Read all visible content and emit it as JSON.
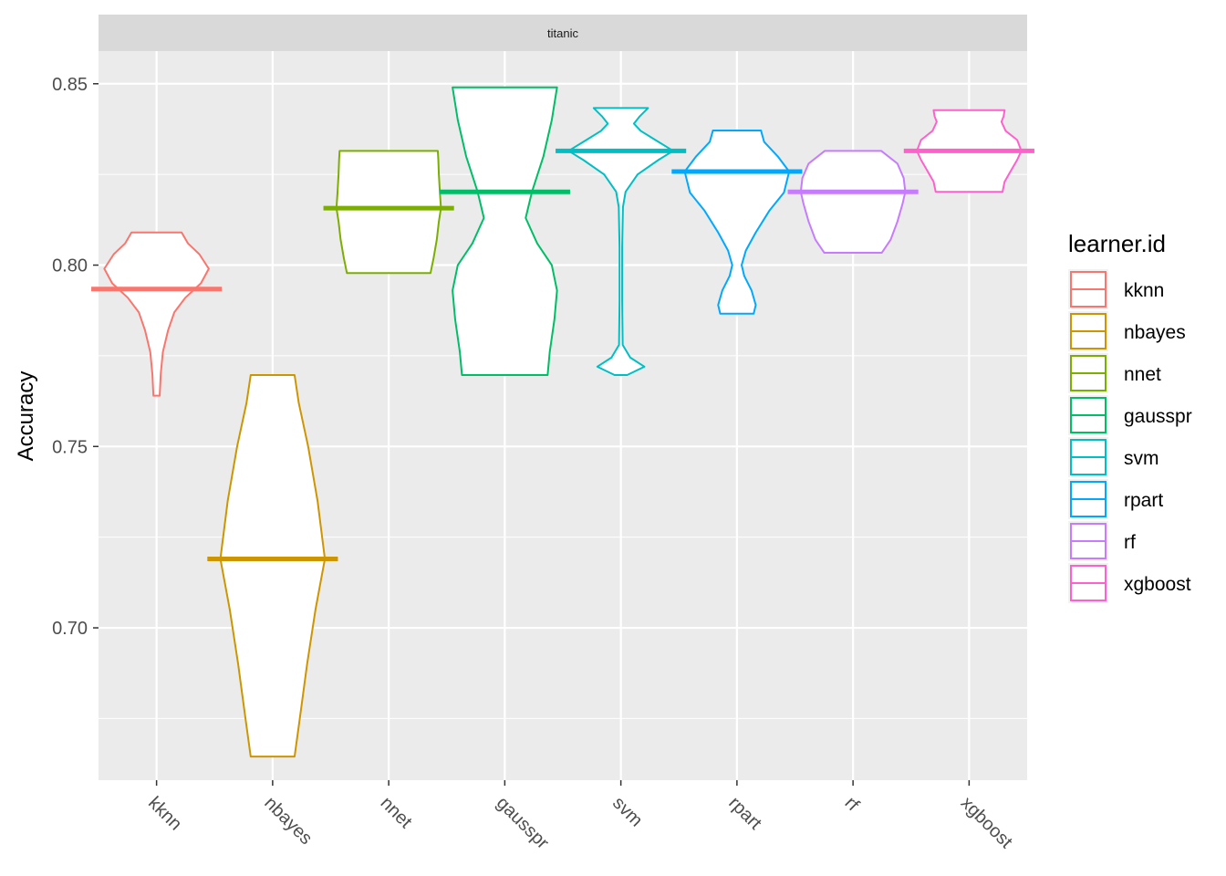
{
  "chart_data": {
    "type": "violin",
    "facet": "titanic",
    "ylabel": "Accuracy",
    "xlabel": "",
    "ylim": [
      0.658,
      0.859
    ],
    "y_ticks": [
      0.7,
      0.75,
      0.8,
      0.85
    ],
    "y_tick_labels": [
      "0.70",
      "0.75",
      "0.80",
      "0.85"
    ],
    "grid": true,
    "legend": {
      "title": "learner.id",
      "position": "right"
    },
    "categories": [
      "kknn",
      "nbayes",
      "nnet",
      "gausspr",
      "svm",
      "rpart",
      "rf",
      "xgboost"
    ],
    "series": [
      {
        "name": "kknn",
        "color": "#F8766D",
        "median": 0.7934,
        "profile": [
          [
            0.764,
            0.06
          ],
          [
            0.77,
            0.08
          ],
          [
            0.776,
            0.12
          ],
          [
            0.782,
            0.22
          ],
          [
            0.787,
            0.34
          ],
          [
            0.791,
            0.55
          ],
          [
            0.795,
            0.85
          ],
          [
            0.799,
            1.0
          ],
          [
            0.803,
            0.82
          ],
          [
            0.806,
            0.6
          ],
          [
            0.809,
            0.48
          ]
        ]
      },
      {
        "name": "nbayes",
        "color": "#CD9600",
        "median": 0.719,
        "profile": [
          [
            0.6645,
            0.42
          ],
          [
            0.675,
            0.52
          ],
          [
            0.69,
            0.66
          ],
          [
            0.705,
            0.82
          ],
          [
            0.719,
            1.0
          ],
          [
            0.735,
            0.86
          ],
          [
            0.75,
            0.68
          ],
          [
            0.762,
            0.5
          ],
          [
            0.7697,
            0.42
          ]
        ]
      },
      {
        "name": "nnet",
        "color": "#7CAE00",
        "median": 0.8157,
        "profile": [
          [
            0.7978,
            0.8
          ],
          [
            0.802,
            0.86
          ],
          [
            0.807,
            0.92
          ],
          [
            0.812,
            0.96
          ],
          [
            0.8157,
            1.0
          ],
          [
            0.82,
            0.98
          ],
          [
            0.825,
            0.96
          ],
          [
            0.829,
            0.95
          ],
          [
            0.8315,
            0.94
          ]
        ]
      },
      {
        "name": "gausspr",
        "color": "#00BE67",
        "median": 0.8202,
        "profile": [
          [
            0.7697,
            0.82
          ],
          [
            0.776,
            0.86
          ],
          [
            0.785,
            0.95
          ],
          [
            0.793,
            1.0
          ],
          [
            0.8,
            0.9
          ],
          [
            0.806,
            0.62
          ],
          [
            0.813,
            0.4
          ],
          [
            0.8202,
            0.52
          ],
          [
            0.83,
            0.74
          ],
          [
            0.84,
            0.9
          ],
          [
            0.849,
            1.0
          ]
        ]
      },
      {
        "name": "svm",
        "color": "#00BFC4",
        "median": 0.8315,
        "profile": [
          [
            0.7697,
            0.12
          ],
          [
            0.772,
            0.45
          ],
          [
            0.7745,
            0.18
          ],
          [
            0.778,
            0.035
          ],
          [
            0.79,
            0.025
          ],
          [
            0.805,
            0.025
          ],
          [
            0.816,
            0.04
          ],
          [
            0.8202,
            0.09
          ],
          [
            0.825,
            0.32
          ],
          [
            0.829,
            0.72
          ],
          [
            0.8315,
            1.0
          ],
          [
            0.8345,
            0.66
          ],
          [
            0.837,
            0.38
          ],
          [
            0.839,
            0.25
          ],
          [
            0.841,
            0.36
          ],
          [
            0.8433,
            0.52
          ]
        ]
      },
      {
        "name": "rpart",
        "color": "#00A9FF",
        "median": 0.8258,
        "profile": [
          [
            0.7866,
            0.32
          ],
          [
            0.789,
            0.36
          ],
          [
            0.793,
            0.28
          ],
          [
            0.797,
            0.14
          ],
          [
            0.8,
            0.09
          ],
          [
            0.804,
            0.17
          ],
          [
            0.809,
            0.36
          ],
          [
            0.815,
            0.62
          ],
          [
            0.82,
            0.9
          ],
          [
            0.8258,
            1.0
          ],
          [
            0.83,
            0.78
          ],
          [
            0.834,
            0.52
          ],
          [
            0.8371,
            0.46
          ]
        ]
      },
      {
        "name": "rf",
        "color": "#C77CFF",
        "median": 0.8202,
        "profile": [
          [
            0.8034,
            0.55
          ],
          [
            0.807,
            0.72
          ],
          [
            0.812,
            0.85
          ],
          [
            0.817,
            0.95
          ],
          [
            0.8202,
            1.0
          ],
          [
            0.824,
            0.97
          ],
          [
            0.828,
            0.85
          ],
          [
            0.8315,
            0.54
          ]
        ]
      },
      {
        "name": "xgboost",
        "color": "#FF61CC",
        "median": 0.8315,
        "profile": [
          [
            0.8202,
            0.64
          ],
          [
            0.823,
            0.68
          ],
          [
            0.826,
            0.8
          ],
          [
            0.829,
            0.92
          ],
          [
            0.8315,
            1.0
          ],
          [
            0.8345,
            0.92
          ],
          [
            0.837,
            0.7
          ],
          [
            0.8395,
            0.62
          ],
          [
            0.841,
            0.66
          ],
          [
            0.8427,
            0.68
          ]
        ]
      }
    ]
  }
}
